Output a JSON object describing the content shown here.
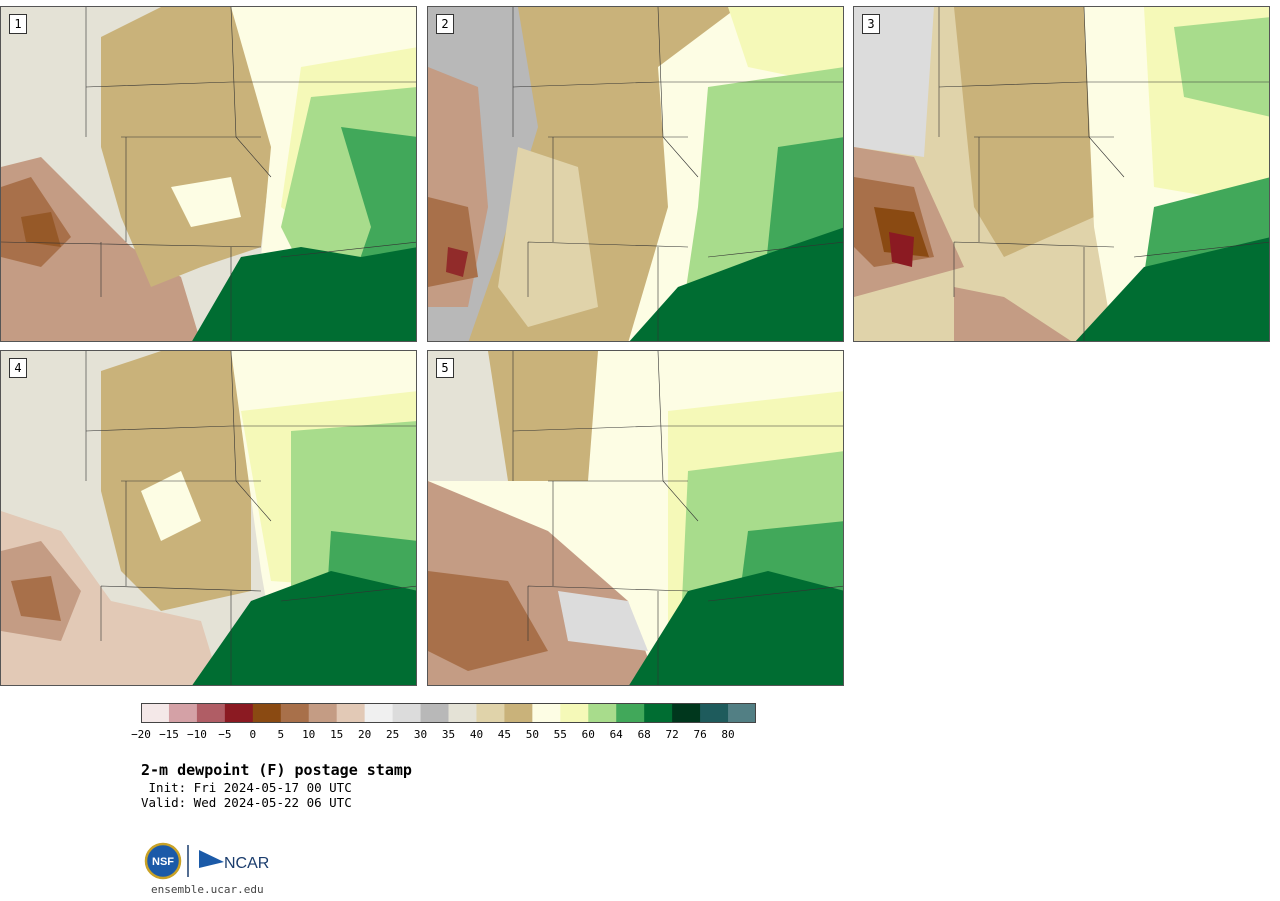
{
  "panels": [
    {
      "label": "1"
    },
    {
      "label": "2"
    },
    {
      "label": "3"
    },
    {
      "label": "4"
    },
    {
      "label": "5"
    }
  ],
  "colorbar": {
    "ticks": [
      "−20",
      "−15",
      "−10",
      "−5",
      "0",
      "5",
      "10",
      "15",
      "20",
      "25",
      "30",
      "35",
      "40",
      "45",
      "50",
      "55",
      "60",
      "64",
      "68",
      "72",
      "76",
      "80"
    ],
    "colors": [
      "#f4e8e8",
      "#d4a1a6",
      "#b05d65",
      "#8b1a22",
      "#8a4a12",
      "#a8704a",
      "#c49c84",
      "#e2c9b6",
      "#f0f0f0",
      "#dcdcdc",
      "#b8b8b8",
      "#e4e2d6",
      "#e0d3aa",
      "#c9b27a",
      "#fdfde4",
      "#f5f9b8",
      "#a8dc8c",
      "#41a85a",
      "#006d32",
      "#00371d",
      "#1e5b5c",
      "#527f84"
    ]
  },
  "title": "2-m dewpoint (F) postage stamp",
  "init": " Init: Fri 2024-05-17 00 UTC",
  "valid": "Valid: Wed 2024-05-22 06 UTC",
  "logos": {
    "nsf": "NSF",
    "ncar": "NCAR"
  },
  "url": "ensemble.ucar.edu"
}
